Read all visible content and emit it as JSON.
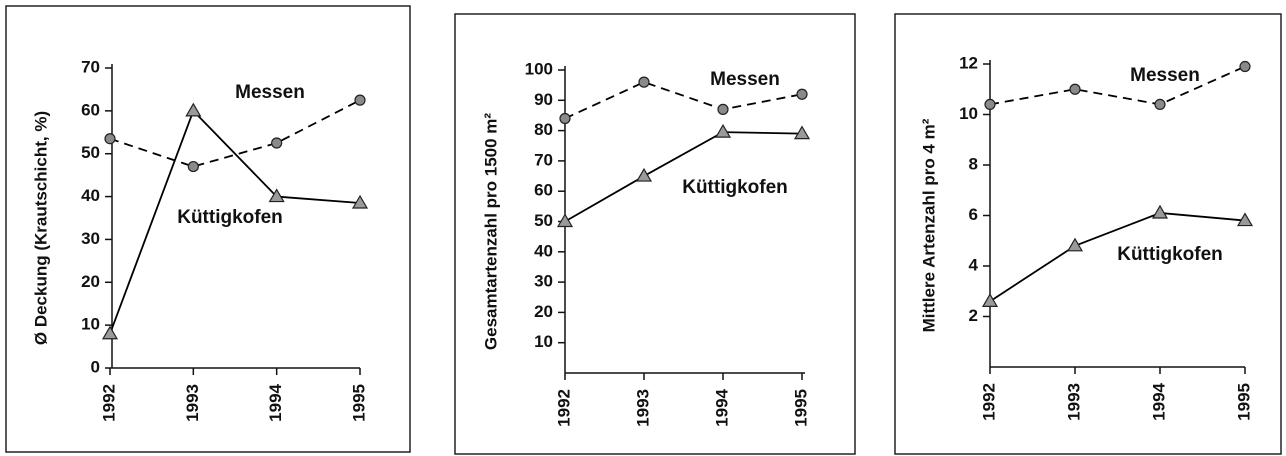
{
  "chart_data": [
    {
      "type": "line",
      "ylabel": "Ø Deckung (Krautschicht, %)",
      "categories": [
        "1992",
        "1993",
        "1994",
        "1995"
      ],
      "ylim": [
        0,
        70
      ],
      "yticks": [
        0,
        10,
        20,
        30,
        40,
        50,
        60,
        70
      ],
      "series": [
        {
          "name": "Messen",
          "color": "#000000",
          "marker": "circle",
          "dash": true,
          "values": [
            53.5,
            47,
            52.5,
            62.5
          ]
        },
        {
          "name": "Küttigkofen",
          "color": "#000000",
          "marker": "triangle",
          "dash": false,
          "values": [
            8,
            60,
            40,
            38.5
          ]
        }
      ]
    },
    {
      "type": "line",
      "ylabel": "Gesamtartenzahl pro 1500 m²",
      "categories": [
        "1992",
        "1993",
        "1994",
        "1995"
      ],
      "ylim": [
        0,
        100
      ],
      "yticks": [
        10,
        20,
        30,
        40,
        50,
        60,
        70,
        80,
        90,
        100
      ],
      "series": [
        {
          "name": "Messen",
          "color": "#000000",
          "marker": "circle",
          "dash": true,
          "values": [
            84,
            96,
            87,
            92
          ]
        },
        {
          "name": "Küttigkofen",
          "color": "#000000",
          "marker": "triangle",
          "dash": false,
          "values": [
            50,
            65,
            79.5,
            79
          ]
        }
      ]
    },
    {
      "type": "line",
      "ylabel": "Mittlere Artenzahl pro 4 m²",
      "categories": [
        "1992",
        "1993",
        "1994",
        "1995"
      ],
      "ylim": [
        0,
        12
      ],
      "yticks": [
        2,
        4,
        6,
        8,
        10,
        12
      ],
      "series": [
        {
          "name": "Messen",
          "color": "#000000",
          "marker": "circle",
          "dash": true,
          "values": [
            10.4,
            11,
            10.4,
            11.9
          ]
        },
        {
          "name": "Küttigkofen",
          "color": "#000000",
          "marker": "triangle",
          "dash": false,
          "values": [
            2.6,
            4.8,
            6.1,
            5.8
          ]
        }
      ]
    }
  ]
}
